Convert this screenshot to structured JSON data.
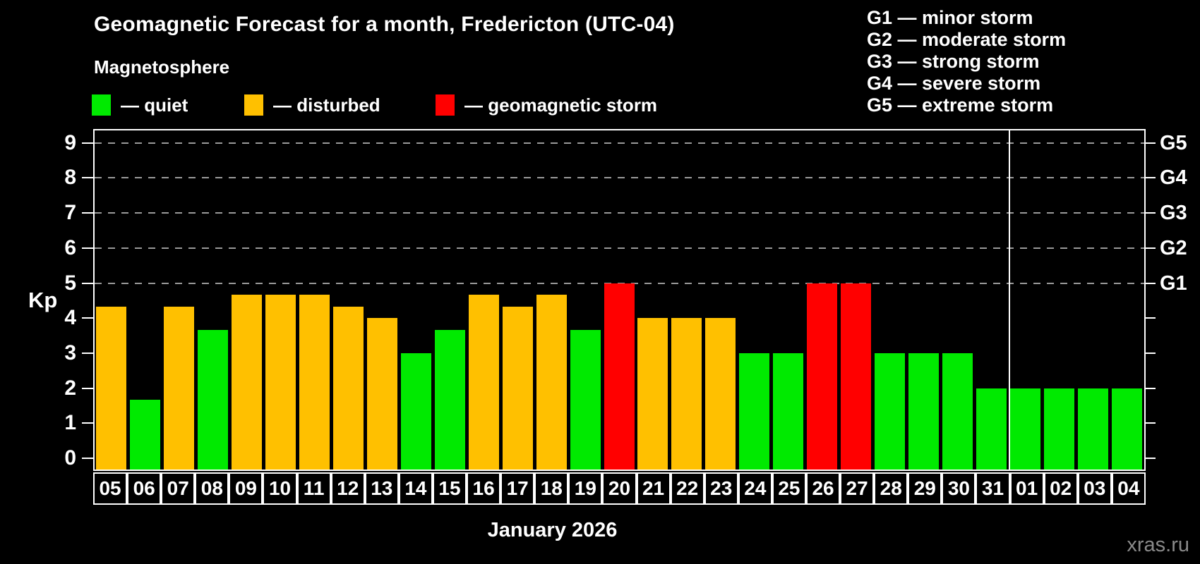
{
  "title": "Geomagnetic Forecast for a month, Fredericton (UTC-04)",
  "subtitle": "Magnetosphere",
  "legend": {
    "items": [
      {
        "id": "quiet",
        "label": "— quiet"
      },
      {
        "id": "disturbed",
        "label": "— disturbed"
      },
      {
        "id": "storm",
        "label": "— geomagnetic storm"
      }
    ]
  },
  "g_legend": [
    "G1 — minor storm",
    "G2 — moderate storm",
    "G3 — strong storm",
    "G4 — severe storm",
    "G5 — extreme storm"
  ],
  "colors": {
    "quiet": "#00ea00",
    "disturbed": "#ffc000",
    "storm": "#ff0000",
    "grid": "#9a9a9a",
    "axis": "#ffffff",
    "watermark": "#8a8a8a"
  },
  "axes": {
    "kp_label": "Kp",
    "yticks": [
      0,
      1,
      2,
      3,
      4,
      5,
      6,
      7,
      8,
      9
    ],
    "right_labels": [
      {
        "label": "G1",
        "kp": 5
      },
      {
        "label": "G2",
        "kp": 6
      },
      {
        "label": "G3",
        "kp": 7
      },
      {
        "label": "G4",
        "kp": 8
      },
      {
        "label": "G5",
        "kp": 9
      }
    ]
  },
  "x_axis": {
    "month_label": "January 2026"
  },
  "watermark": "xras.ru",
  "chart_data": {
    "type": "bar",
    "title": "Geomagnetic Forecast for a month, Fredericton (UTC-04)",
    "ylabel": "Kp",
    "ylim": [
      0,
      9
    ],
    "gridlines_at": [
      5,
      6,
      7,
      8,
      9
    ],
    "categories": [
      "05",
      "06",
      "07",
      "08",
      "09",
      "10",
      "11",
      "12",
      "13",
      "14",
      "15",
      "16",
      "17",
      "18",
      "19",
      "20",
      "21",
      "22",
      "23",
      "24",
      "25",
      "26",
      "27",
      "28",
      "29",
      "30",
      "31",
      "01",
      "02",
      "03",
      "04"
    ],
    "values": [
      4.33,
      1.67,
      4.33,
      3.67,
      4.67,
      4.67,
      4.67,
      4.33,
      4,
      3,
      3.67,
      4.67,
      4.33,
      4.67,
      3.67,
      5,
      4,
      4,
      4,
      3,
      3,
      5,
      5,
      3,
      3,
      3,
      2,
      2,
      2,
      2,
      2
    ],
    "statuses": [
      "disturbed",
      "quiet",
      "disturbed",
      "quiet",
      "disturbed",
      "disturbed",
      "disturbed",
      "disturbed",
      "disturbed",
      "quiet",
      "quiet",
      "disturbed",
      "disturbed",
      "disturbed",
      "quiet",
      "storm",
      "disturbed",
      "disturbed",
      "disturbed",
      "quiet",
      "quiet",
      "storm",
      "storm",
      "quiet",
      "quiet",
      "quiet",
      "quiet",
      "quiet",
      "quiet",
      "quiet",
      "quiet"
    ],
    "month_divider_after_index": 26,
    "xlabel": "January 2026",
    "legend_position": "top"
  }
}
